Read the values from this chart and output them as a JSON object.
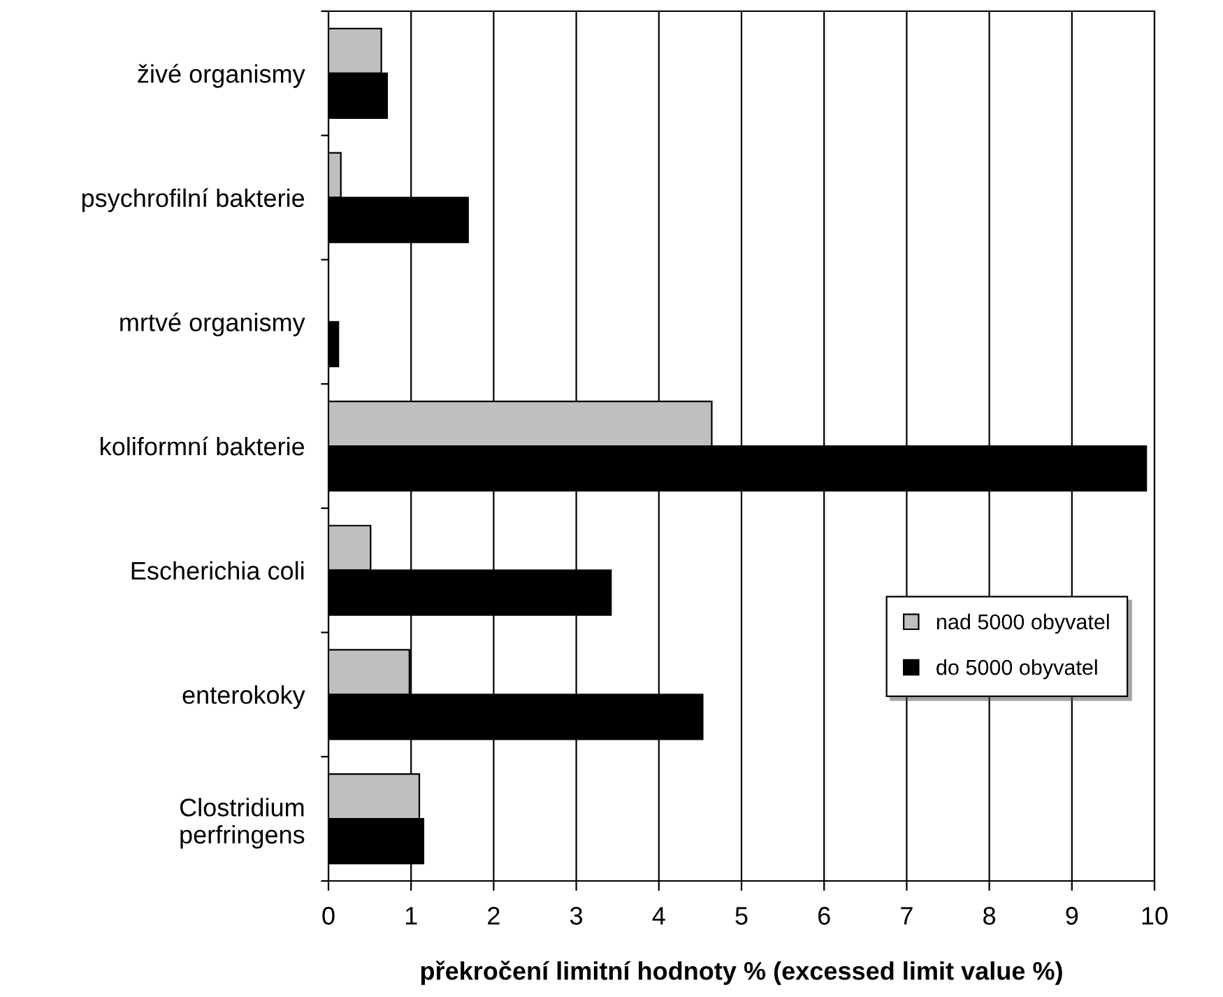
{
  "chart_data": {
    "type": "bar",
    "orientation": "horizontal",
    "xlabel": "překročení limitní hodnoty % (excessed limit value %)",
    "categories": [
      "živé organismy",
      "psychrofilní bakterie",
      "mrtvé organismy",
      "koliformní bakterie",
      "Escherichia coli",
      "enterokoky",
      "Clostridium\nperfringens"
    ],
    "series": [
      {
        "name": "nad 5000 obyvatel",
        "color": "#bfbfbf",
        "values": [
          0.64,
          0.15,
          0,
          4.64,
          0.51,
          0.98,
          1.1
        ]
      },
      {
        "name": "do 5000 obyvatel",
        "color": "#000000",
        "values": [
          0.71,
          1.69,
          0.12,
          9.9,
          3.42,
          4.53,
          1.15
        ]
      }
    ],
    "xlim": [
      0,
      10
    ],
    "xticks": [
      0,
      1,
      2,
      3,
      4,
      5,
      6,
      7,
      8,
      9,
      10
    ],
    "grid": "x",
    "legend": "bottom right"
  }
}
